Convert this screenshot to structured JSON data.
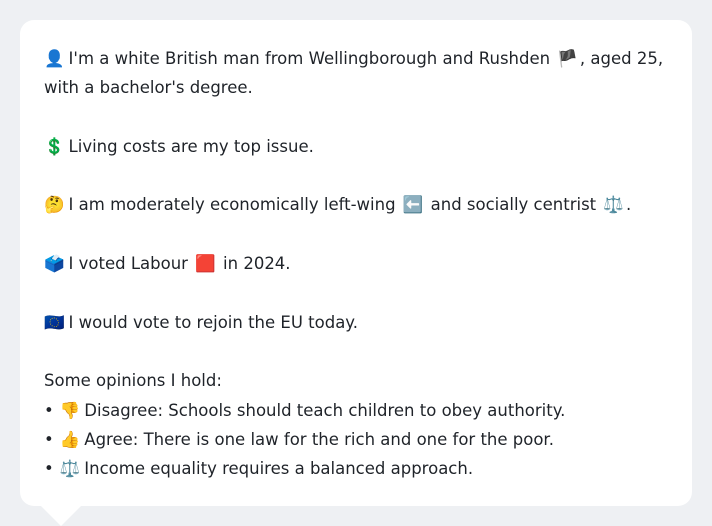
{
  "profile": {
    "identity": {
      "icon": "👤",
      "icon_name": "person-silhouette-icon",
      "text_a": "I'm a white British man from Wellingborough and Rushden",
      "flag": "🏴",
      "flag_name": "england-flag-icon",
      "text_b": ", aged 25,",
      "text_c": "with a bachelor's degree."
    },
    "issue": {
      "icon": "💲",
      "icon_name": "dollar-sign-icon",
      "text": "Living costs are my top issue."
    },
    "leaning": {
      "icon": "🤔",
      "icon_name": "thinking-face-icon",
      "text_a": "I am moderately economically left-wing",
      "left_icon": "⬅️",
      "left_icon_name": "left-arrow-icon",
      "text_b": "and socially centrist",
      "scale_icon": "⚖️",
      "scale_icon_name": "balance-scale-icon",
      "text_c": "."
    },
    "vote": {
      "icon": "🗳️",
      "icon_name": "ballot-box-icon",
      "text_a": "I voted Labour",
      "party_icon": "🟥",
      "party_icon_name": "red-square-icon",
      "text_b": "in 2024."
    },
    "eu": {
      "icon": "🇪🇺",
      "icon_name": "eu-flag-icon",
      "text": "I would vote to rejoin the EU today."
    },
    "opinions": {
      "heading": "Some opinions I hold:",
      "bullet": "•",
      "items": [
        {
          "icon": "👎",
          "icon_name": "thumbs-down-icon",
          "text": "Disagree: Schools should teach children to obey authority."
        },
        {
          "icon": "👍",
          "icon_name": "thumbs-up-icon",
          "text": "Agree: There is one law for the rich and one for the poor."
        },
        {
          "icon": "⚖️",
          "icon_name": "balance-scale-icon",
          "text": "Income equality requires a balanced approach."
        }
      ]
    }
  }
}
